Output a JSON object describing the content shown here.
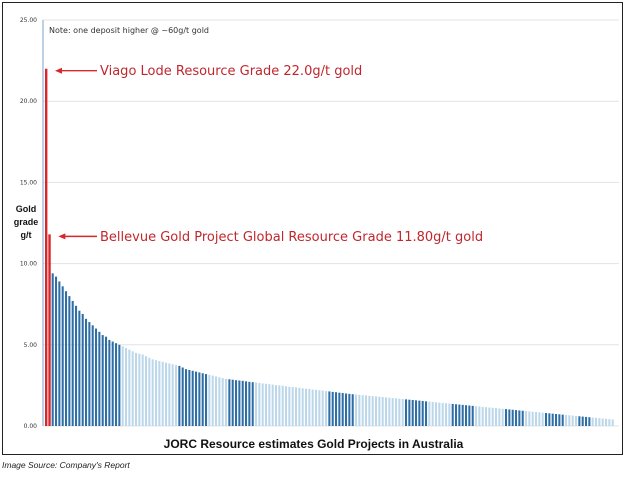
{
  "chart_data": {
    "type": "bar",
    "title": "",
    "xlabel": "JORC Resource estimates Gold Projects in Australia",
    "ylabel_lines": [
      "Gold",
      "grade",
      "g/t"
    ],
    "ylim": [
      0,
      25
    ],
    "yticks": [
      "0.00",
      "5.00",
      "10.00",
      "15.00",
      "20.00",
      "25.00"
    ],
    "grid": true,
    "note": "Note: one deposit higher @ ~60g/t gold",
    "highlight_color": "#d9262b",
    "bar_color_light": "#bcd7ea",
    "bar_color_dark": "#2e6ea6",
    "highlights": [
      {
        "label": "Viago Lode Resource Grade 22.0g/t gold",
        "value": 22.0,
        "index": 0
      },
      {
        "label": "Bellevue Gold Project Global Resource Grade 11.80g/t gold",
        "value": 11.8,
        "index": 1
      }
    ],
    "values": [
      22.0,
      11.8,
      9.4,
      9.2,
      8.9,
      8.6,
      8.3,
      8.0,
      7.7,
      7.4,
      7.1,
      6.9,
      6.6,
      6.4,
      6.2,
      6.0,
      5.8,
      5.6,
      5.5,
      5.3,
      5.2,
      5.1,
      5.0,
      4.9,
      4.8,
      4.7,
      4.6,
      4.5,
      4.45,
      4.4,
      4.3,
      4.2,
      4.1,
      4.05,
      4.0,
      3.95,
      3.9,
      3.85,
      3.8,
      3.75,
      3.7,
      3.6,
      3.5,
      3.45,
      3.4,
      3.35,
      3.3,
      3.25,
      3.2,
      3.15,
      3.1,
      3.05,
      3.0,
      2.95,
      2.9,
      2.88,
      2.85,
      2.82,
      2.8,
      2.78,
      2.75,
      2.72,
      2.7,
      2.68,
      2.65,
      2.62,
      2.6,
      2.58,
      2.55,
      2.52,
      2.5,
      2.48,
      2.45,
      2.42,
      2.4,
      2.38,
      2.35,
      2.32,
      2.3,
      2.28,
      2.25,
      2.23,
      2.2,
      2.18,
      2.15,
      2.13,
      2.1,
      2.08,
      2.05,
      2.03,
      2.0,
      1.98,
      1.96,
      1.94,
      1.92,
      1.9,
      1.88,
      1.86,
      1.84,
      1.82,
      1.8,
      1.78,
      1.76,
      1.74,
      1.72,
      1.7,
      1.68,
      1.66,
      1.64,
      1.62,
      1.6,
      1.58,
      1.56,
      1.54,
      1.52,
      1.5,
      1.48,
      1.46,
      1.44,
      1.42,
      1.4,
      1.38,
      1.36,
      1.34,
      1.32,
      1.3,
      1.28,
      1.26,
      1.24,
      1.22,
      1.2,
      1.18,
      1.16,
      1.14,
      1.12,
      1.1,
      1.08,
      1.06,
      1.04,
      1.02,
      1.0,
      0.98,
      0.96,
      0.94,
      0.92,
      0.9,
      0.88,
      0.86,
      0.84,
      0.82,
      0.8,
      0.78,
      0.76,
      0.74,
      0.72,
      0.7,
      0.68,
      0.66,
      0.64,
      0.62,
      0.6,
      0.58,
      0.56,
      0.54,
      0.52,
      0.5,
      0.48,
      0.46,
      0.44,
      0.42,
      0.4
    ],
    "dark_ranges": [
      [
        2,
        22
      ],
      [
        40,
        48
      ],
      [
        55,
        62
      ],
      [
        85,
        92
      ],
      [
        108,
        114
      ],
      [
        122,
        128
      ],
      [
        138,
        143
      ],
      [
        150,
        155
      ],
      [
        160,
        163
      ]
    ]
  },
  "source_text": "Image Source: Company's Report"
}
